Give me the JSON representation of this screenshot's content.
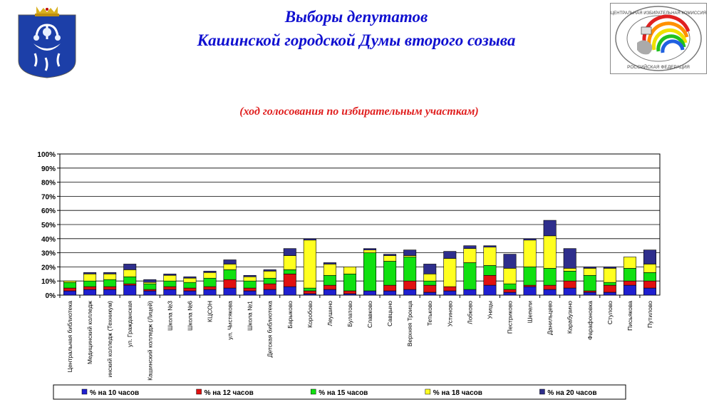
{
  "header": {
    "title_line1": "Выборы депутатов",
    "title_line2": "Кашинской городской Думы второго созыва",
    "subtitle": "(ход голосования по избирательным участкам)"
  },
  "emblems": {
    "left": "coat-of-arms-kashin",
    "right_text_top": "ЦЕНТРАЛЬНАЯ ИЗБИРАТЕЛЬНАЯ КОМИССИЯ",
    "right_text_bottom": "РОССИЙСКАЯ ФЕДЕРАЦИЯ"
  },
  "colors": {
    "blue": "#1f1fd0",
    "red": "#e01010",
    "green": "#10e010",
    "yellow": "#ffff20",
    "navy": "#2e2e8c",
    "title": "#1010d0",
    "subtitle": "#e02020"
  },
  "chart_data": {
    "type": "bar",
    "stacked": true,
    "ylim": [
      0,
      100
    ],
    "yticks": [
      "0%",
      "10%",
      "20%",
      "30%",
      "40%",
      "50%",
      "60%",
      "70%",
      "80%",
      "90%",
      "100%"
    ],
    "grid": true,
    "legend_position": "bottom",
    "categories": [
      "Центральная библиотека",
      "Медицинский колледж",
      "инский колледж (Техникум)",
      "ул. Гражданская",
      "Кашинский колледж (Лицей)",
      "Школа №3",
      "Школа №6",
      "КЦСОН",
      "ул. Чистякова",
      "Школа №1",
      "Детская библиотека",
      "Барыково",
      "Коробово",
      "Леушино",
      "Булатово",
      "Славково",
      "Савцыно",
      "Верхняя Троица",
      "Тетьково",
      "Устиново",
      "Лобково",
      "Уницы",
      "Пестриково",
      "Шепели",
      "Данильцево",
      "Карабузино",
      "Фарафоновка",
      "Стулово",
      "Письякова",
      "Путилово"
    ],
    "series": [
      {
        "name": "% на 10 часов",
        "color": "#1f1fd0",
        "values": [
          3,
          4,
          4,
          7,
          3,
          4,
          3,
          4,
          5,
          3,
          4,
          6,
          1,
          4,
          1,
          3,
          3,
          4,
          2,
          3,
          4,
          7,
          2,
          6,
          4,
          5,
          2,
          2,
          7,
          5
        ]
      },
      {
        "name": "% на 12 часов",
        "color": "#e01010",
        "values": [
          2,
          2,
          2,
          1,
          1,
          2,
          2,
          2,
          6,
          2,
          4,
          9,
          2,
          3,
          2,
          0,
          4,
          6,
          5,
          3,
          0,
          7,
          2,
          1,
          3,
          5,
          1,
          5,
          3,
          5
        ]
      },
      {
        "name": "% на 15 часов",
        "color": "#10e010",
        "values": [
          4,
          4,
          5,
          5,
          4,
          4,
          4,
          6,
          7,
          5,
          4,
          3,
          2,
          7,
          12,
          27,
          17,
          17,
          3,
          0,
          19,
          7,
          4,
          13,
          12,
          7,
          11,
          2,
          9,
          6
        ]
      },
      {
        "name": "% на 18 часов",
        "color": "#ffff20",
        "values": [
          1,
          5,
          4,
          5,
          1,
          4,
          3,
          4,
          4,
          3,
          5,
          10,
          34,
          8,
          5,
          2,
          4,
          1,
          5,
          20,
          10,
          13,
          11,
          19,
          23,
          2,
          5,
          10,
          8,
          6
        ]
      },
      {
        "name": "% на 20 часов",
        "color": "#2e2e8c",
        "values": [
          0,
          1,
          1,
          4,
          2,
          1,
          1,
          1,
          3,
          1,
          1,
          5,
          1,
          1,
          0,
          1,
          1,
          4,
          7,
          5,
          2,
          1,
          10,
          1,
          11,
          14,
          1,
          1,
          0,
          10
        ]
      }
    ]
  }
}
